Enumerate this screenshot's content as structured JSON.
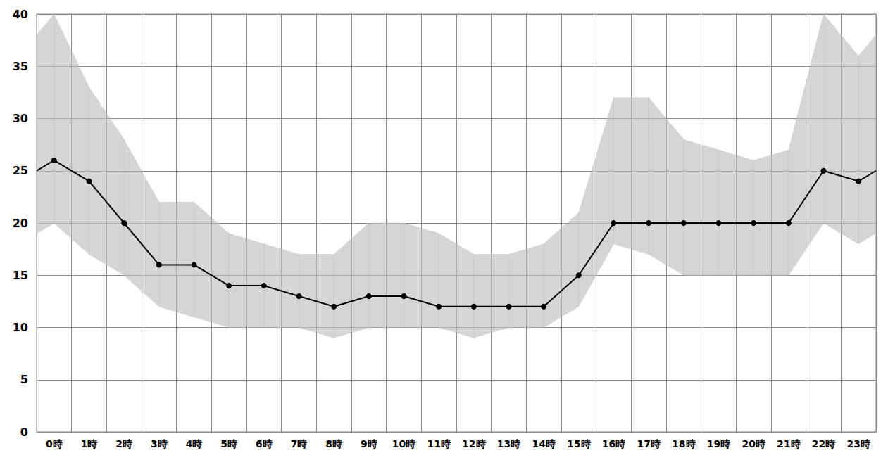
{
  "chart_data": {
    "type": "line",
    "x": [
      0,
      0.5,
      1.5,
      2.5,
      3.5,
      4.5,
      5.5,
      6.5,
      7.5,
      8.5,
      9.5,
      10.5,
      11.5,
      12.5,
      13.5,
      14.5,
      15.5,
      16.5,
      17.5,
      18.5,
      19.5,
      20.5,
      21.5,
      22.5,
      23.5,
      24
    ],
    "values": [
      25,
      26,
      24,
      20,
      16,
      16,
      14,
      14,
      13,
      12,
      13,
      13,
      12,
      12,
      12,
      12,
      15,
      20,
      20,
      20,
      20,
      20,
      20,
      25,
      24,
      25
    ],
    "band_low": [
      19,
      20,
      17,
      15,
      12,
      11,
      10,
      10,
      10,
      9,
      10,
      10,
      10,
      9,
      10,
      10,
      12,
      18,
      17,
      15,
      15,
      15,
      15,
      20,
      18,
      19
    ],
    "band_high": [
      38,
      40,
      33,
      28,
      22,
      22,
      19,
      18,
      17,
      17,
      20,
      20,
      19,
      17,
      17,
      18,
      21,
      32,
      32,
      28,
      27,
      26,
      27,
      40,
      36,
      38
    ],
    "xlim": [
      0,
      24
    ],
    "xticks": [
      {
        "value": 0.5,
        "label": "0時"
      },
      {
        "value": 1.5,
        "label": "1時"
      },
      {
        "value": 2.5,
        "label": "2時"
      },
      {
        "value": 3.5,
        "label": "3時"
      },
      {
        "value": 4.5,
        "label": "4時"
      },
      {
        "value": 5.5,
        "label": "5時"
      },
      {
        "value": 6.5,
        "label": "6時"
      },
      {
        "value": 7.5,
        "label": "7時"
      },
      {
        "value": 8.5,
        "label": "8時"
      },
      {
        "value": 9.5,
        "label": "9時"
      },
      {
        "value": 10.5,
        "label": "10時"
      },
      {
        "value": 11.5,
        "label": "11時"
      },
      {
        "value": 12.5,
        "label": "12時"
      },
      {
        "value": 13.5,
        "label": "13時"
      },
      {
        "value": 14.5,
        "label": "14時"
      },
      {
        "value": 15.5,
        "label": "15時"
      },
      {
        "value": 16.5,
        "label": "16時"
      },
      {
        "value": 17.5,
        "label": "17時"
      },
      {
        "value": 18.5,
        "label": "18時"
      },
      {
        "value": 19.5,
        "label": "19時"
      },
      {
        "value": 20.5,
        "label": "20時"
      },
      {
        "value": 21.5,
        "label": "21時"
      },
      {
        "value": 22.5,
        "label": "22時"
      },
      {
        "value": 23.5,
        "label": "23時"
      }
    ],
    "ylim": [
      0,
      40
    ],
    "yticks": [
      0,
      5,
      10,
      15,
      20,
      25,
      30,
      35,
      40
    ],
    "grid": true,
    "color": "#000000",
    "marker": "circle"
  }
}
